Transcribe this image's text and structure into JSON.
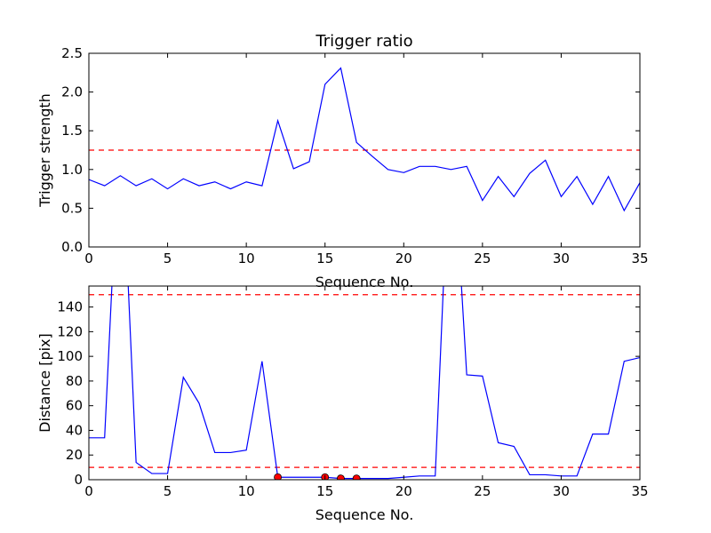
{
  "chart_data": [
    {
      "type": "line",
      "title": "Trigger ratio",
      "xlabel": "Sequence No.",
      "ylabel": "Trigger strength",
      "xlim": [
        0,
        35
      ],
      "ylim": [
        0,
        2.5
      ],
      "xticks": [
        0,
        5,
        10,
        15,
        20,
        25,
        30,
        35
      ],
      "yticks": [
        0.0,
        0.5,
        1.0,
        1.5,
        2.0,
        2.5
      ],
      "ytick_labels": [
        "0.0",
        "0.5",
        "1.0",
        "1.5",
        "2.0",
        "2.5"
      ],
      "grid": false,
      "series": [
        {
          "color": "#0000ff",
          "x": [
            0,
            1,
            2,
            3,
            4,
            5,
            6,
            7,
            8,
            9,
            10,
            11,
            12,
            13,
            14,
            15,
            16,
            17,
            18,
            19,
            20,
            21,
            22,
            23,
            24,
            25,
            26,
            27,
            28,
            29,
            30,
            31,
            32,
            33,
            34,
            35
          ],
          "y": [
            0.87,
            0.79,
            0.92,
            0.79,
            0.88,
            0.75,
            0.88,
            0.79,
            0.84,
            0.75,
            0.84,
            0.79,
            1.63,
            1.01,
            1.1,
            2.1,
            2.31,
            1.35,
            1.17,
            1.0,
            0.96,
            1.04,
            1.04,
            1.0,
            1.04,
            0.6,
            0.91,
            0.65,
            0.95,
            1.12,
            0.65,
            0.91,
            0.55,
            0.91,
            0.47,
            0.83
          ]
        }
      ],
      "reference_lines": [
        {
          "y": 1.25,
          "color": "#ff0000",
          "style": "dashed"
        }
      ]
    },
    {
      "type": "line",
      "title": "",
      "xlabel": "Sequence No.",
      "ylabel": "Distance [pix]",
      "xlim": [
        0,
        35
      ],
      "ylim": [
        0,
        157
      ],
      "xticks": [
        0,
        5,
        10,
        15,
        20,
        25,
        30,
        35
      ],
      "yticks": [
        0,
        20,
        40,
        60,
        80,
        100,
        120,
        140
      ],
      "grid": false,
      "series": [
        {
          "color": "#0000ff",
          "x": [
            0,
            1,
            2,
            3,
            4,
            5,
            6,
            7,
            8,
            9,
            10,
            11,
            12,
            13,
            14,
            15,
            16,
            17,
            18,
            19,
            20,
            21,
            22,
            23,
            24,
            25,
            26,
            27,
            28,
            29,
            30,
            31,
            32,
            33,
            34,
            35
          ],
          "y": [
            34,
            34,
            300,
            14,
            5,
            5,
            83,
            62,
            22,
            22,
            24,
            96,
            2,
            2,
            2,
            2,
            1,
            1,
            1,
            1,
            2,
            3,
            3,
            300,
            85,
            84,
            30,
            27,
            4,
            4,
            3,
            3,
            37,
            37,
            96,
            99
          ]
        }
      ],
      "markers": {
        "color": "#ff0000",
        "x": [
          12,
          15,
          16,
          17
        ],
        "y": [
          2,
          2,
          1,
          1
        ]
      },
      "reference_lines": [
        {
          "y": 150,
          "color": "#ff0000",
          "style": "dashed"
        },
        {
          "y": 10,
          "color": "#ff0000",
          "style": "dashed"
        }
      ]
    }
  ]
}
